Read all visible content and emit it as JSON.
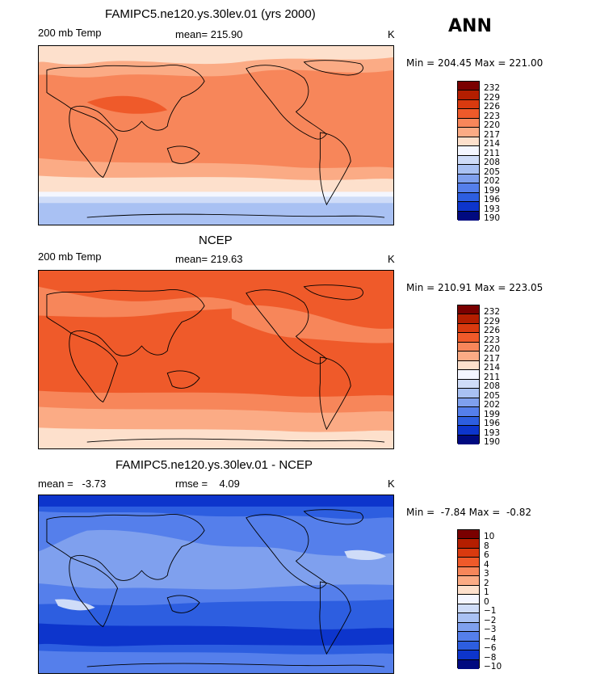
{
  "season": "ANN",
  "panels": [
    {
      "title": "FAMIPC5.ne120.ys.30lev.01 (yrs 2000)",
      "left_label": "200 mb Temp",
      "center_label": "mean= 215.90",
      "units": "K",
      "min_max": "Min = 204.45 Max = 221.00",
      "colorbar_labels": [
        "232",
        "229",
        "226",
        "223",
        "220",
        "217",
        "214",
        "211",
        "208",
        "205",
        "202",
        "199",
        "196",
        "193",
        "190"
      ]
    },
    {
      "title": "NCEP",
      "left_label": "200 mb Temp",
      "center_label": "mean= 219.63",
      "units": "K",
      "min_max": "Min = 210.91 Max = 223.05",
      "colorbar_labels": [
        "232",
        "229",
        "226",
        "223",
        "220",
        "217",
        "214",
        "211",
        "208",
        "205",
        "202",
        "199",
        "196",
        "193",
        "190"
      ]
    },
    {
      "title": "FAMIPC5.ne120.ys.30lev.01 - NCEP",
      "left_label": "mean =   -3.73",
      "center_label": "rmse =    4.09",
      "units": "K",
      "min_max": "Min =  -7.84 Max =  -0.82",
      "colorbar_labels": [
        "10",
        "8",
        "6",
        "4",
        "3",
        "2",
        "1",
        "0",
        "−1",
        "−2",
        "−3",
        "−4",
        "−6",
        "−8",
        "−10"
      ]
    }
  ],
  "colors": {
    "scale": [
      "#7a0000",
      "#b41e00",
      "#d93a0f",
      "#ef5a2a",
      "#f7865a",
      "#fbab85",
      "#fde0cc",
      "#f4f6ff",
      "#cfdcf8",
      "#a9c1f3",
      "#7fa0ee",
      "#557feb",
      "#2d5ee0",
      "#0d35cc",
      "#000a80"
    ],
    "coast": "#000000"
  }
}
